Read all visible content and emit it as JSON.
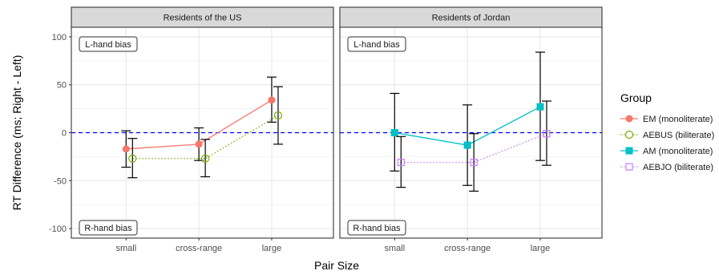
{
  "chart_data": {
    "type": "line",
    "xlabel": "Pair Size",
    "ylabel": "RT Difference (ms; Right - Left)",
    "categories": [
      "small",
      "cross-range",
      "large"
    ],
    "ylim": [
      -110,
      110
    ],
    "yticks": [
      100,
      50,
      0,
      -50,
      -100
    ],
    "reference_line": {
      "y": 0,
      "style": "dashed",
      "color": "#0000ff"
    },
    "annotations": {
      "top": "L-hand bias",
      "bottom": "R-hand bias"
    },
    "grid": true,
    "legend": {
      "title": "Group",
      "position": "right",
      "entries": [
        {
          "label": "EM (monoliterate)",
          "color": "#F8766D",
          "marker": "filled-circle",
          "line": "solid"
        },
        {
          "label": "AEBUS (biliterate)",
          "color": "#7CAE00",
          "marker": "open-circle",
          "line": "dotted"
        },
        {
          "label": "AM (monoliterate)",
          "color": "#00BFC4",
          "marker": "filled-square",
          "line": "solid"
        },
        {
          "label": "AEBJO (biliterate)",
          "color": "#C77CFF",
          "marker": "open-square",
          "line": "dotted"
        }
      ]
    },
    "panels": [
      {
        "title": "Residents of the US",
        "series": [
          {
            "name": "EM (monoliterate)",
            "color": "#F8766D",
            "marker": "filled-circle",
            "line": "solid",
            "offset": 0,
            "values": [
              -17,
              -12,
              34
            ],
            "lower": [
              -36,
              -29,
              11
            ],
            "upper": [
              2,
              5,
              58
            ]
          },
          {
            "name": "AEBUS (biliterate)",
            "color": "#7CAE00",
            "marker": "open-circle",
            "line": "dotted",
            "offset": 1,
            "values": [
              -27,
              -27,
              18
            ],
            "lower": [
              -47,
              -46,
              -12
            ],
            "upper": [
              -6,
              -7,
              48
            ]
          }
        ]
      },
      {
        "title": "Residents of Jordan",
        "series": [
          {
            "name": "AM (monoliterate)",
            "color": "#00BFC4",
            "marker": "filled-square",
            "line": "solid",
            "offset": 0,
            "values": [
              0,
              -13,
              27
            ],
            "lower": [
              -40,
              -55,
              -29
            ],
            "upper": [
              41,
              29,
              84
            ]
          },
          {
            "name": "AEBJO (biliterate)",
            "color": "#C77CFF",
            "marker": "open-square",
            "line": "dotted",
            "offset": 1,
            "values": [
              -31,
              -31,
              -1
            ],
            "lower": [
              -57,
              -61,
              -34
            ],
            "upper": [
              -4,
              -1,
              33
            ]
          }
        ]
      }
    ]
  }
}
